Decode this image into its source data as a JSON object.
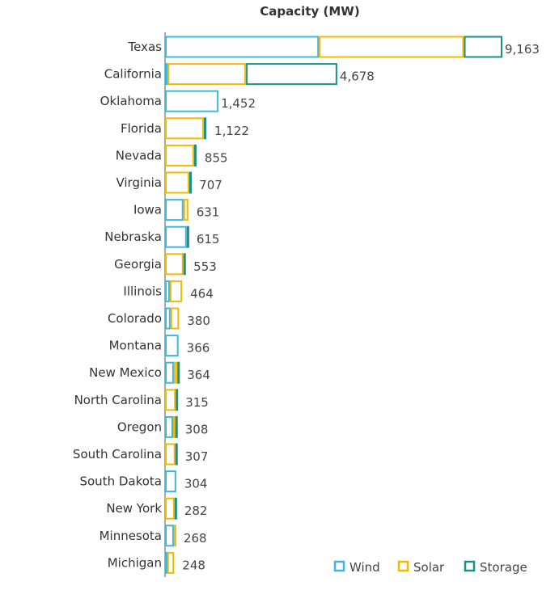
{
  "chart_data": {
    "type": "bar",
    "orientation": "horizontal",
    "stacked": true,
    "title": "Capacity (MW)",
    "xlabel": "",
    "ylabel": "",
    "grid": false,
    "legend_position": "bottom-right",
    "categories": [
      "Texas",
      "California",
      "Oklahoma",
      "Florida",
      "Nevada",
      "Virginia",
      "Iowa",
      "Nebraska",
      "Georgia",
      "Illinois",
      "Colorado",
      "Montana",
      "New Mexico",
      "North Carolina",
      "Oregon",
      "South Carolina",
      "South Dakota",
      "New York",
      "Minnesota",
      "Michigan"
    ],
    "totals": [
      "9,163",
      "4,678",
      "1,452",
      "1,122",
      "855",
      "707",
      "631",
      "615",
      "553",
      "464",
      "380",
      "366",
      "364",
      "315",
      "308",
      "307",
      "304",
      "282",
      "268",
      "248"
    ],
    "series": [
      {
        "name": "Wind",
        "color": "#3bb7e0",
        "values": [
          4180,
          70,
          1452,
          0,
          0,
          0,
          500,
          590,
          0,
          130,
          150,
          366,
          240,
          0,
          220,
          0,
          304,
          0,
          240,
          60
        ]
      },
      {
        "name": "Solar",
        "color": "#f5b800",
        "values": [
          3940,
          2130,
          0,
          1056,
          790,
          660,
          131,
          0,
          500,
          334,
          230,
          0,
          95,
          290,
          60,
          280,
          0,
          260,
          28,
          188
        ]
      },
      {
        "name": "Storage",
        "color": "#17918a",
        "values": [
          1043,
          2478,
          0,
          66,
          65,
          47,
          0,
          25,
          53,
          0,
          0,
          0,
          29,
          25,
          28,
          27,
          0,
          22,
          0,
          0
        ]
      }
    ],
    "xlim": [
      0,
      9163
    ]
  }
}
